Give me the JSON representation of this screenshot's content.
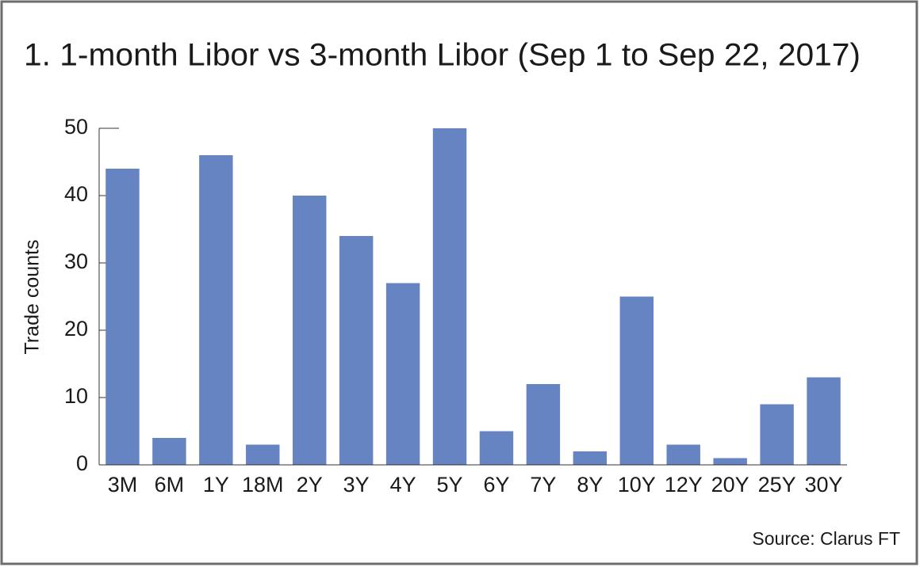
{
  "chart_data": {
    "type": "bar",
    "title": "1. 1-month Libor vs 3-month Libor (Sep 1 to Sep 22, 2017)",
    "y_label": "Trade counts",
    "source": "Source: Clarus FT",
    "categories": [
      "3M",
      "6M",
      "1Y",
      "18M",
      "2Y",
      "3Y",
      "4Y",
      "5Y",
      "6Y",
      "7Y",
      "8Y",
      "10Y",
      "12Y",
      "20Y",
      "25Y",
      "30Y"
    ],
    "values": [
      44,
      4,
      46,
      3,
      40,
      34,
      27,
      50,
      5,
      12,
      2,
      25,
      3,
      1,
      9,
      13
    ],
    "color": "#6683c2",
    "ylim": [
      0,
      50
    ],
    "yticks": [
      0,
      10,
      20,
      30,
      40,
      50
    ],
    "grid": false
  }
}
